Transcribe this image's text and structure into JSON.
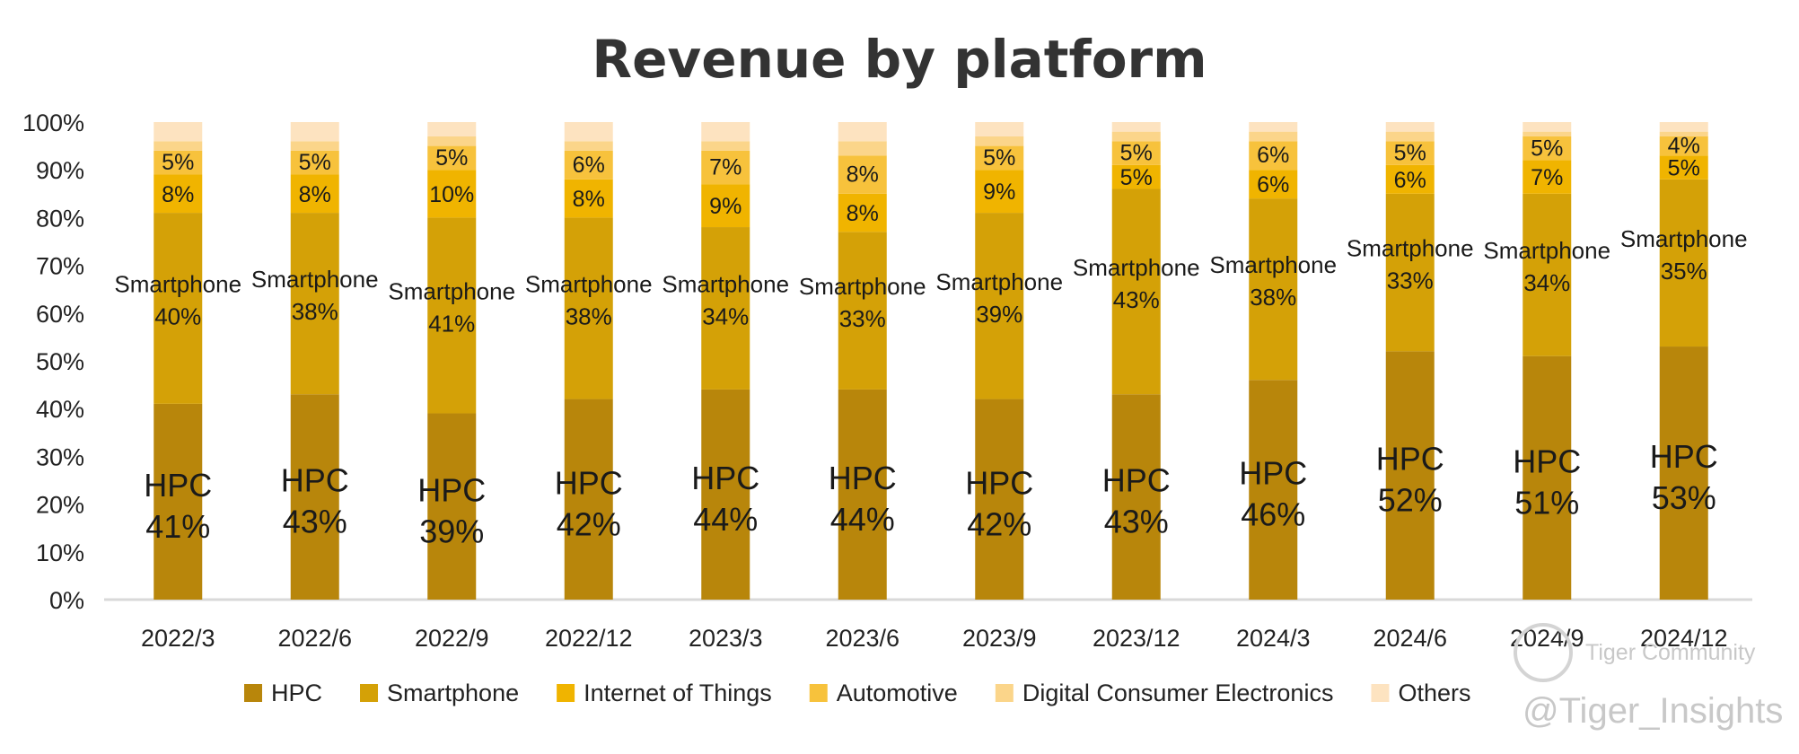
{
  "chart_data": {
    "type": "bar",
    "stacked": true,
    "title": "Revenue by platform",
    "categories": [
      "2022/3",
      "2022/6",
      "2022/9",
      "2022/12",
      "2023/3",
      "2023/6",
      "2023/9",
      "2023/12",
      "2024/3",
      "2024/6",
      "2024/9",
      "2024/12"
    ],
    "series": [
      {
        "name": "HPC",
        "values": [
          41,
          43,
          39,
          42,
          44,
          44,
          42,
          43,
          46,
          52,
          51,
          53
        ]
      },
      {
        "name": "Smartphone",
        "values": [
          40,
          38,
          41,
          38,
          34,
          33,
          39,
          43,
          38,
          33,
          34,
          35
        ]
      },
      {
        "name": "Internet of Things",
        "values": [
          8,
          8,
          10,
          8,
          9,
          8,
          9,
          5,
          6,
          6,
          7,
          5
        ]
      },
      {
        "name": "Automotive",
        "values": [
          5,
          5,
          5,
          6,
          7,
          8,
          5,
          5,
          6,
          5,
          5,
          4
        ]
      },
      {
        "name": "Digital Consumer Electronics",
        "values": [
          2,
          2,
          2,
          2,
          2,
          3,
          2,
          2,
          2,
          2,
          1,
          1
        ]
      },
      {
        "name": "Others",
        "values": [
          4,
          4,
          3,
          4,
          4,
          4,
          3,
          2,
          2,
          2,
          2,
          2
        ]
      }
    ],
    "colors": [
      "#b8860b",
      "#d4a107",
      "#f0b400",
      "#f7c23c",
      "#fbd58a",
      "#fde3c0"
    ],
    "ylim": [
      0,
      100
    ],
    "yticks": [
      "0%",
      "10%",
      "20%",
      "30%",
      "40%",
      "50%",
      "60%",
      "70%",
      "80%",
      "90%",
      "100%"
    ],
    "legend_position": "bottom",
    "grid": false,
    "segment_labels": {
      "hpc_name": "HPC",
      "hpc": [
        "41%",
        "43%",
        "39%",
        "42%",
        "44%",
        "44%",
        "42%",
        "43%",
        "46%",
        "52%",
        "51%",
        "53%"
      ],
      "smartphone_name": "Smartphone",
      "smartphone": [
        "40%",
        "38%",
        "41%",
        "38%",
        "34%",
        "33%",
        "39%",
        "43%",
        "38%",
        "33%",
        "34%",
        "35%"
      ],
      "iot": [
        "8%",
        "8%",
        "10%",
        "8%",
        "9%",
        "8%",
        "9%",
        "5%",
        "6%",
        "6%",
        "7%",
        "5%"
      ],
      "automotive": [
        "5%",
        "5%",
        "5%",
        "6%",
        "7%",
        "8%",
        "5%",
        "5%",
        "6%",
        "5%",
        "5%",
        "4%"
      ]
    }
  },
  "watermark": {
    "line1": "Tiger Community",
    "line2": "@Tiger_Insights"
  }
}
